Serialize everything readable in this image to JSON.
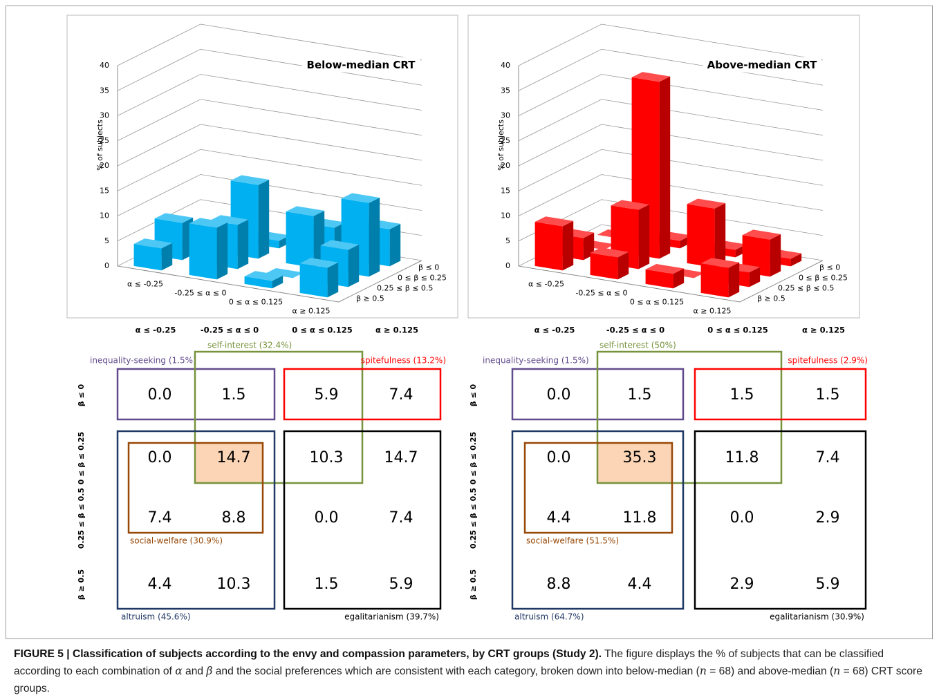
{
  "chart_data": [
    {
      "type": "bar3d",
      "title": "Below-median CRT",
      "y_label": "% of subjects",
      "ylim": [
        0,
        40
      ],
      "yticks": [
        0,
        5,
        10,
        15,
        20,
        25,
        30,
        35,
        40
      ],
      "categories": [
        "α ≤ -0.25",
        "-0.25 ≤ α ≤ 0",
        "0 ≤ α ≤ 0.125",
        "α ≥ 0.125"
      ],
      "depth_categories": [
        "β ≤ 0",
        "0 ≤ β ≤ 0.25",
        "0.25 ≤ β ≤ 0.5",
        "β ≥ 0.5"
      ],
      "values": [
        [
          0.0,
          1.5,
          5.9,
          7.4
        ],
        [
          0.0,
          14.7,
          10.3,
          14.7
        ],
        [
          7.4,
          8.8,
          0.0,
          7.4
        ],
        [
          4.4,
          10.3,
          1.5,
          5.9
        ]
      ],
      "value_labels": [
        [
          "0.0",
          "1.5",
          "5.9",
          "7.4"
        ],
        [
          "0.0",
          "14.7",
          "10.3",
          "14.7"
        ],
        [
          "7.4",
          "8.8",
          "0.0",
          "7.4"
        ],
        [
          "4.4",
          "10.3",
          "1.5",
          "5.9"
        ]
      ],
      "color": "#00b0f0"
    },
    {
      "type": "bar3d",
      "title": "Above-median CRT",
      "y_label": "% of subjects",
      "ylim": [
        0,
        40
      ],
      "yticks": [
        0,
        5,
        10,
        15,
        20,
        25,
        30,
        35,
        40
      ],
      "categories": [
        "α ≤ -0.25",
        "-0.25 ≤ α ≤ 0",
        "0 ≤ α ≤ 0.125",
        "α ≥ 0.125"
      ],
      "depth_categories": [
        "β ≤ 0",
        "0 ≤ β ≤ 0.25",
        "0.25 ≤ β ≤ 0.5",
        "β ≥ 0.5"
      ],
      "values": [
        [
          0.0,
          1.5,
          1.5,
          1.5
        ],
        [
          0.0,
          35.3,
          11.8,
          7.4
        ],
        [
          4.4,
          11.8,
          0.0,
          2.9
        ],
        [
          8.8,
          4.4,
          2.9,
          5.9
        ]
      ],
      "value_labels": [
        [
          "0.0",
          "1.5",
          "1.5",
          "1.5"
        ],
        [
          "0.0",
          "35.3",
          "11.8",
          "7.4"
        ],
        [
          "4.4",
          "11.8",
          "0.0",
          "2.9"
        ],
        [
          "8.8",
          "4.4",
          "2.9",
          "5.9"
        ]
      ],
      "color": "#ff0000"
    }
  ],
  "tables": [
    {
      "groups": [
        {
          "label": "inequality-seeking (1.5%)",
          "color": "#604a8b"
        },
        {
          "label": "self-interest (32.4%)",
          "color": "#77933c"
        },
        {
          "label": "spitefulness (13.2%)",
          "color": "#ff0000"
        },
        {
          "label": "social-welfare (30.9%)",
          "color": "#984807"
        },
        {
          "label": "altruism (45.6%)",
          "color": "#1f3864"
        },
        {
          "label": "egalitarianism (39.7%)",
          "color": "#000000"
        }
      ]
    },
    {
      "groups": [
        {
          "label": "inequality-seeking (1.5%)",
          "color": "#604a8b"
        },
        {
          "label": "self-interest (50%)",
          "color": "#77933c"
        },
        {
          "label": "spitefulness (2.9%)",
          "color": "#ff0000"
        },
        {
          "label": "social-welfare (51.5%)",
          "color": "#984807"
        },
        {
          "label": "altruism (64.7%)",
          "color": "#1f3864"
        },
        {
          "label": "egalitarianism (30.9%)",
          "color": "#000000"
        }
      ]
    }
  ],
  "caption": {
    "title": "FIGURE 5 | Classification of subjects according to the envy and compassion parameters, by CRT groups (Study 2).",
    "body": [
      "The figure displays the % of subjects that can be classified according to each combination of ",
      "α",
      " and ",
      "β",
      " and the social preferences which are consistent with each category, broken down into below-median (",
      "n",
      " = 68) and above-median (",
      "n",
      " = 68) CRT score groups."
    ]
  }
}
